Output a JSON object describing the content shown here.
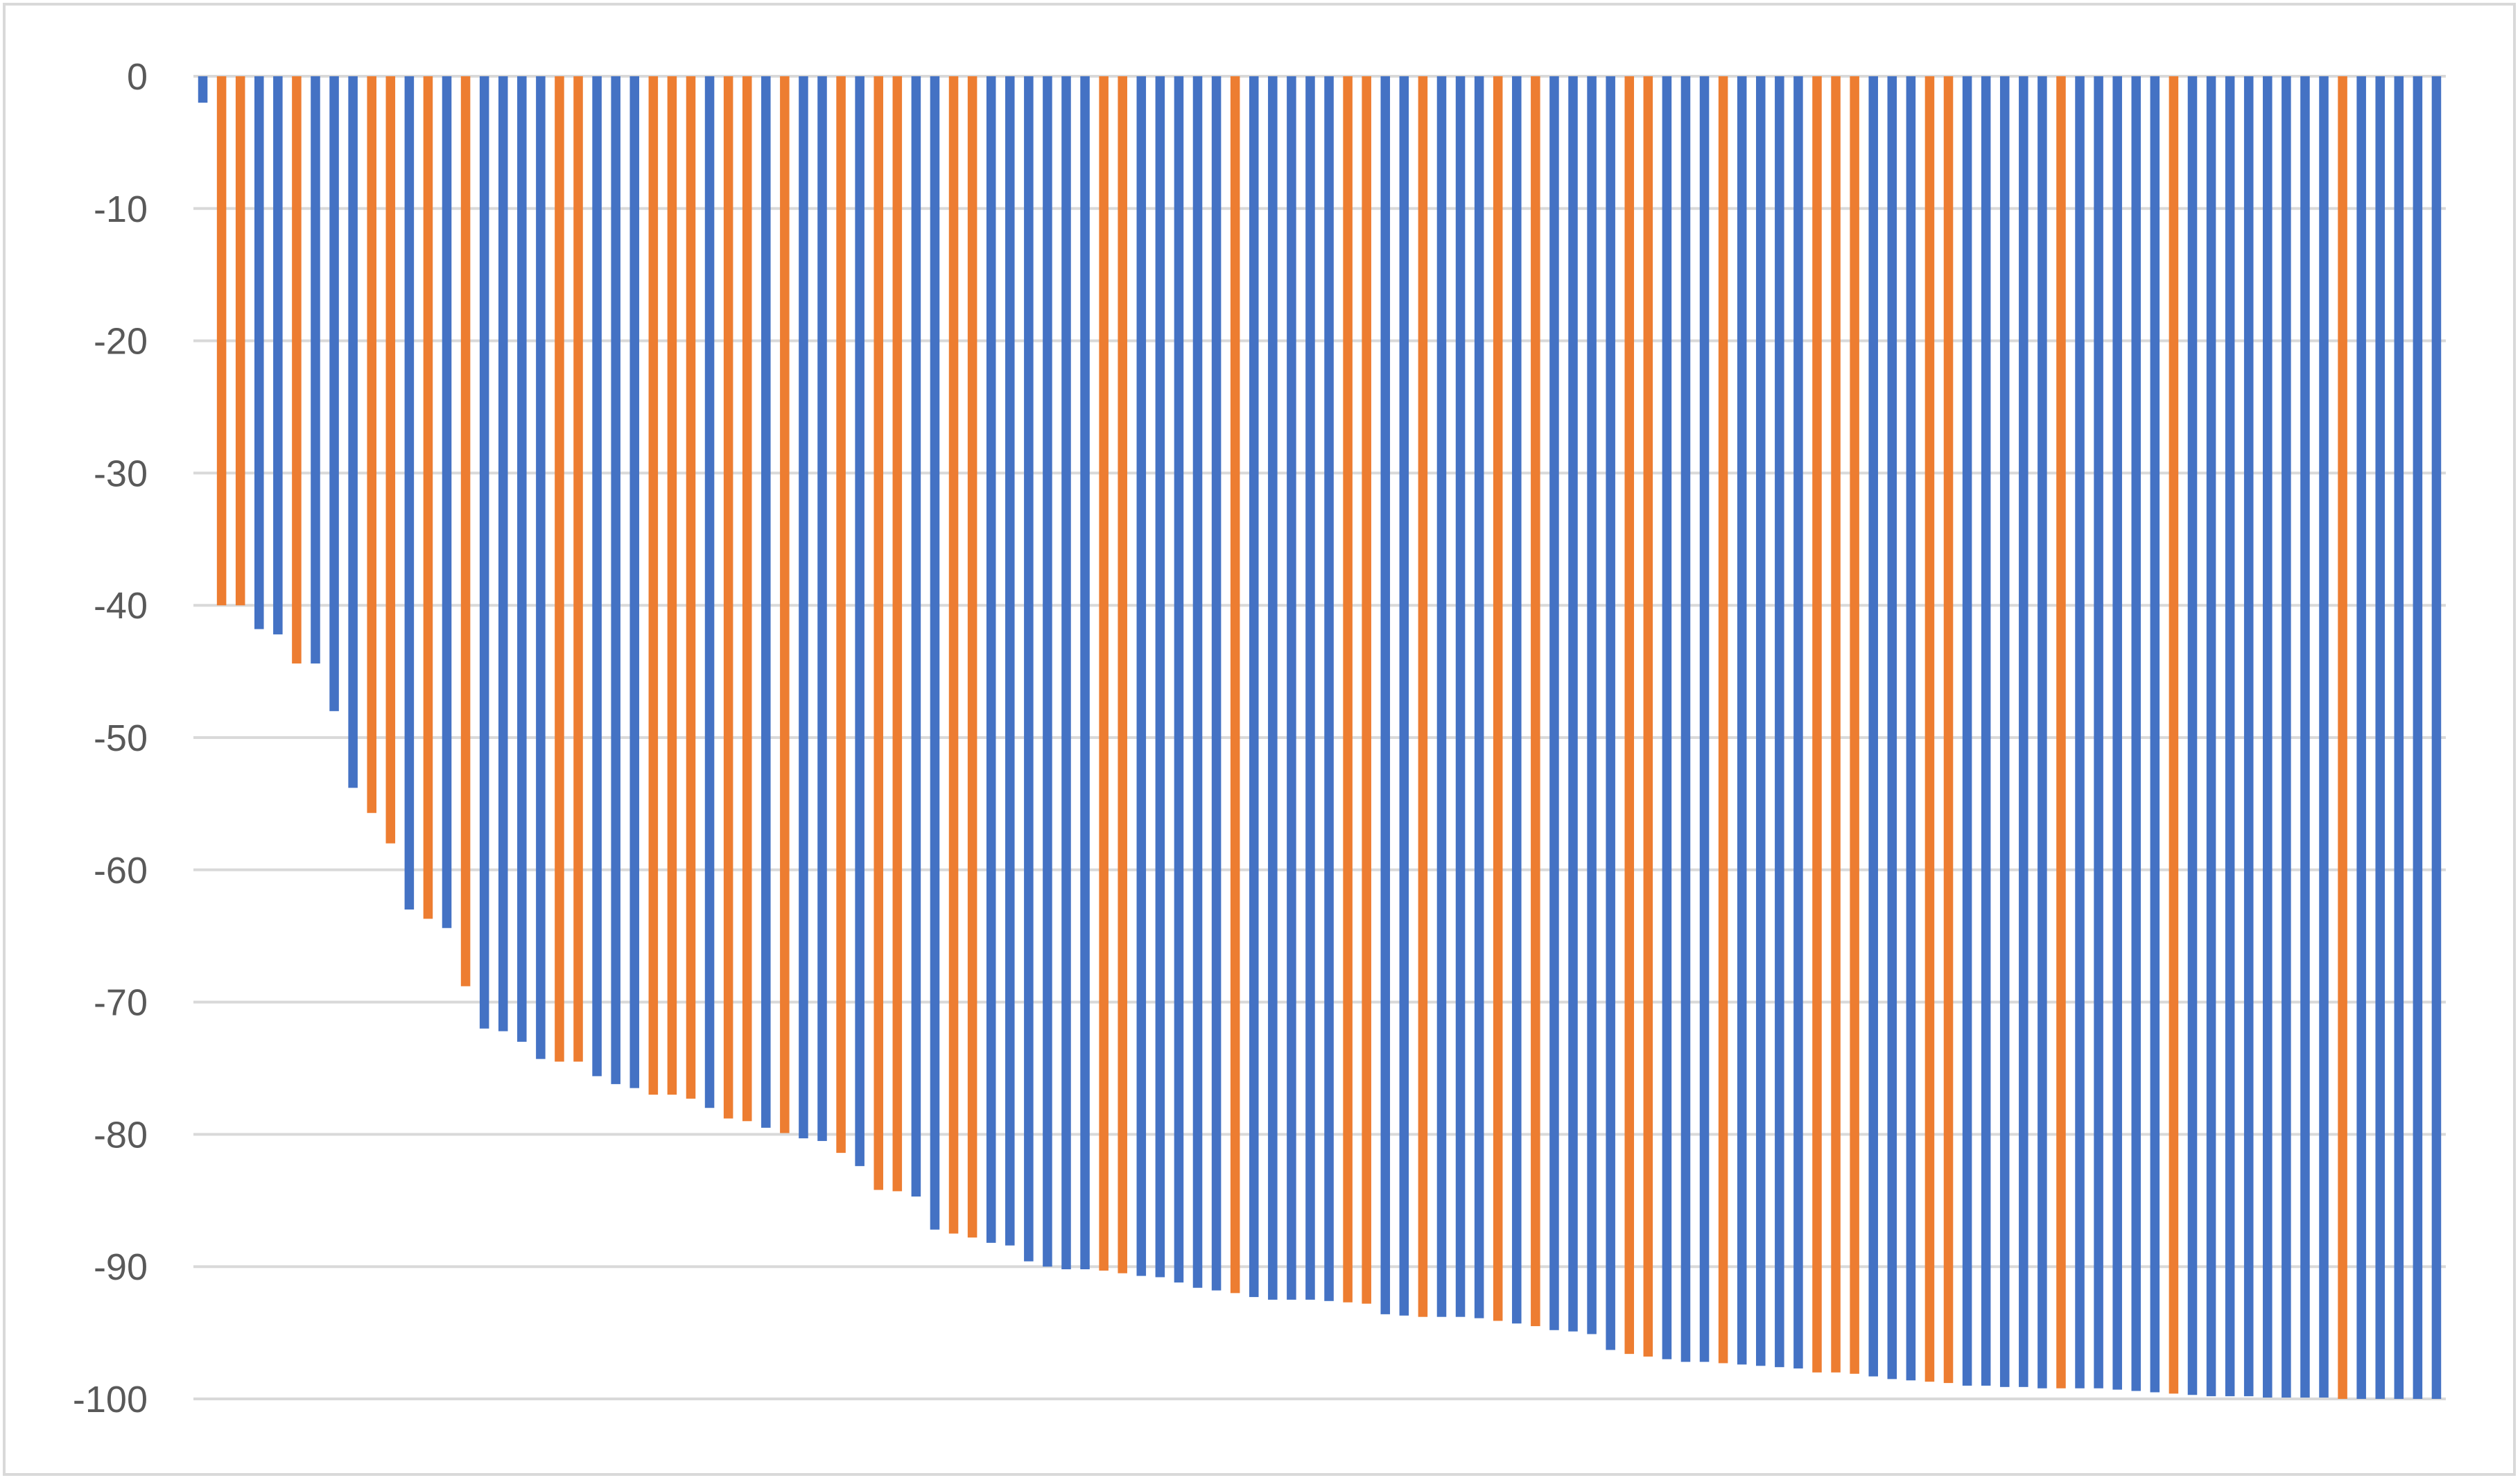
{
  "chart_data": {
    "type": "bar",
    "title": "",
    "xlabel": "",
    "ylabel": "",
    "ylim": [
      -100,
      0
    ],
    "grid": true,
    "legend": "none",
    "yticks": [
      "0",
      "-10",
      "-20",
      "-30",
      "-40",
      "-50",
      "-60",
      "-70",
      "-80",
      "-90",
      "-100"
    ],
    "ytick_values": [
      0,
      -10,
      -20,
      -30,
      -40,
      -50,
      -60,
      -70,
      -80,
      -90,
      -100
    ],
    "colors": {
      "blue": "#4472c4",
      "orange": "#ed7d31",
      "grid": "#d9d9d9",
      "frame": "#d9d9d9",
      "tick_text": "#595959"
    },
    "bars": [
      {
        "value": -2,
        "color": "blue"
      },
      {
        "value": -40,
        "color": "orange"
      },
      {
        "value": -40,
        "color": "orange"
      },
      {
        "value": -41.8,
        "color": "blue"
      },
      {
        "value": -42.2,
        "color": "blue"
      },
      {
        "value": -44.4,
        "color": "orange"
      },
      {
        "value": -44.4,
        "color": "blue"
      },
      {
        "value": -48,
        "color": "blue"
      },
      {
        "value": -53.8,
        "color": "blue"
      },
      {
        "value": -55.7,
        "color": "orange"
      },
      {
        "value": -58,
        "color": "orange"
      },
      {
        "value": -63,
        "color": "blue"
      },
      {
        "value": -63.7,
        "color": "orange"
      },
      {
        "value": -64.4,
        "color": "blue"
      },
      {
        "value": -68.8,
        "color": "orange"
      },
      {
        "value": -72,
        "color": "blue"
      },
      {
        "value": -72.2,
        "color": "blue"
      },
      {
        "value": -73,
        "color": "blue"
      },
      {
        "value": -74.3,
        "color": "blue"
      },
      {
        "value": -74.5,
        "color": "orange"
      },
      {
        "value": -74.5,
        "color": "orange"
      },
      {
        "value": -75.6,
        "color": "blue"
      },
      {
        "value": -76.2,
        "color": "blue"
      },
      {
        "value": -76.5,
        "color": "blue"
      },
      {
        "value": -77,
        "color": "orange"
      },
      {
        "value": -77,
        "color": "orange"
      },
      {
        "value": -77.3,
        "color": "orange"
      },
      {
        "value": -78,
        "color": "blue"
      },
      {
        "value": -78.8,
        "color": "orange"
      },
      {
        "value": -79,
        "color": "orange"
      },
      {
        "value": -79.5,
        "color": "blue"
      },
      {
        "value": -79.9,
        "color": "orange"
      },
      {
        "value": -80.3,
        "color": "blue"
      },
      {
        "value": -80.5,
        "color": "blue"
      },
      {
        "value": -81.4,
        "color": "orange"
      },
      {
        "value": -82.4,
        "color": "blue"
      },
      {
        "value": -84.2,
        "color": "orange"
      },
      {
        "value": -84.3,
        "color": "orange"
      },
      {
        "value": -84.7,
        "color": "blue"
      },
      {
        "value": -87.2,
        "color": "blue"
      },
      {
        "value": -87.5,
        "color": "orange"
      },
      {
        "value": -87.8,
        "color": "orange"
      },
      {
        "value": -88.2,
        "color": "blue"
      },
      {
        "value": -88.4,
        "color": "blue"
      },
      {
        "value": -89.6,
        "color": "blue"
      },
      {
        "value": -90,
        "color": "blue"
      },
      {
        "value": -90.2,
        "color": "blue"
      },
      {
        "value": -90.2,
        "color": "blue"
      },
      {
        "value": -90.3,
        "color": "orange"
      },
      {
        "value": -90.5,
        "color": "orange"
      },
      {
        "value": -90.7,
        "color": "blue"
      },
      {
        "value": -90.8,
        "color": "blue"
      },
      {
        "value": -91.2,
        "color": "blue"
      },
      {
        "value": -91.6,
        "color": "blue"
      },
      {
        "value": -91.8,
        "color": "blue"
      },
      {
        "value": -92,
        "color": "orange"
      },
      {
        "value": -92.3,
        "color": "blue"
      },
      {
        "value": -92.5,
        "color": "blue"
      },
      {
        "value": -92.5,
        "color": "blue"
      },
      {
        "value": -92.5,
        "color": "blue"
      },
      {
        "value": -92.6,
        "color": "blue"
      },
      {
        "value": -92.7,
        "color": "orange"
      },
      {
        "value": -92.8,
        "color": "orange"
      },
      {
        "value": -93.6,
        "color": "blue"
      },
      {
        "value": -93.7,
        "color": "blue"
      },
      {
        "value": -93.8,
        "color": "orange"
      },
      {
        "value": -93.8,
        "color": "blue"
      },
      {
        "value": -93.8,
        "color": "blue"
      },
      {
        "value": -93.9,
        "color": "blue"
      },
      {
        "value": -94.1,
        "color": "orange"
      },
      {
        "value": -94.3,
        "color": "blue"
      },
      {
        "value": -94.5,
        "color": "orange"
      },
      {
        "value": -94.8,
        "color": "blue"
      },
      {
        "value": -94.9,
        "color": "blue"
      },
      {
        "value": -95.1,
        "color": "blue"
      },
      {
        "value": -96.3,
        "color": "blue"
      },
      {
        "value": -96.6,
        "color": "orange"
      },
      {
        "value": -96.8,
        "color": "orange"
      },
      {
        "value": -97,
        "color": "blue"
      },
      {
        "value": -97.2,
        "color": "blue"
      },
      {
        "value": -97.2,
        "color": "blue"
      },
      {
        "value": -97.3,
        "color": "orange"
      },
      {
        "value": -97.4,
        "color": "blue"
      },
      {
        "value": -97.5,
        "color": "blue"
      },
      {
        "value": -97.6,
        "color": "blue"
      },
      {
        "value": -97.7,
        "color": "blue"
      },
      {
        "value": -98,
        "color": "orange"
      },
      {
        "value": -98,
        "color": "orange"
      },
      {
        "value": -98.1,
        "color": "orange"
      },
      {
        "value": -98.3,
        "color": "blue"
      },
      {
        "value": -98.5,
        "color": "blue"
      },
      {
        "value": -98.6,
        "color": "blue"
      },
      {
        "value": -98.7,
        "color": "orange"
      },
      {
        "value": -98.8,
        "color": "orange"
      },
      {
        "value": -99,
        "color": "blue"
      },
      {
        "value": -99,
        "color": "blue"
      },
      {
        "value": -99.1,
        "color": "blue"
      },
      {
        "value": -99.1,
        "color": "blue"
      },
      {
        "value": -99.2,
        "color": "blue"
      },
      {
        "value": -99.2,
        "color": "orange"
      },
      {
        "value": -99.2,
        "color": "blue"
      },
      {
        "value": -99.2,
        "color": "blue"
      },
      {
        "value": -99.3,
        "color": "blue"
      },
      {
        "value": -99.4,
        "color": "blue"
      },
      {
        "value": -99.5,
        "color": "blue"
      },
      {
        "value": -99.6,
        "color": "orange"
      },
      {
        "value": -99.7,
        "color": "blue"
      },
      {
        "value": -99.8,
        "color": "blue"
      },
      {
        "value": -99.8,
        "color": "blue"
      },
      {
        "value": -99.8,
        "color": "blue"
      },
      {
        "value": -99.9,
        "color": "blue"
      },
      {
        "value": -99.9,
        "color": "blue"
      },
      {
        "value": -99.9,
        "color": "blue"
      },
      {
        "value": -99.9,
        "color": "blue"
      },
      {
        "value": -100,
        "color": "orange"
      },
      {
        "value": -100,
        "color": "blue"
      },
      {
        "value": -100,
        "color": "blue"
      },
      {
        "value": -100,
        "color": "blue"
      },
      {
        "value": -100,
        "color": "blue"
      },
      {
        "value": -100,
        "color": "blue"
      }
    ]
  }
}
